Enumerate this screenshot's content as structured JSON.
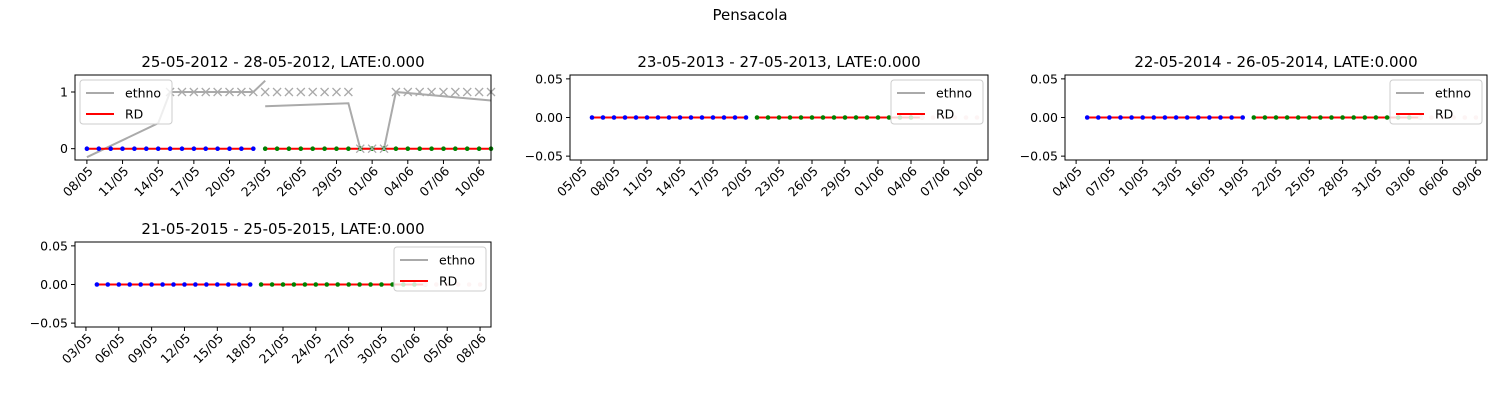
{
  "figure": {
    "suptitle": "Pensacola"
  },
  "colors": {
    "ethno": "#aaaaaa",
    "rd": "#ff0000",
    "pre_markers": "#0000ff",
    "post_markers": "#008000",
    "cross_markers": "#aaaaaa",
    "faded_markers": "#f2c8c8"
  },
  "chart_data": [
    {
      "type": "line",
      "title": "25-05-2012 - 28-05-2012, LATE:0.000",
      "xlabel": "",
      "ylabel": "",
      "x_range": [
        "07/05",
        "11/06"
      ],
      "ylim": [
        -0.2,
        1.3
      ],
      "yticks": [
        "0",
        "1"
      ],
      "xticks": [
        "08/05",
        "11/05",
        "14/05",
        "17/05",
        "20/05",
        "23/05",
        "26/05",
        "29/05",
        "01/06",
        "04/06",
        "07/06",
        "10/06"
      ],
      "legend": {
        "placement": "upper-left",
        "entries": [
          "ethno",
          "RD"
        ]
      },
      "grid": false,
      "series": [
        {
          "name": "ethno",
          "kind": "ethno-line",
          "segments": [
            [
              [
                "08/05",
                -0.15
              ],
              [
                "14/05",
                0.45
              ],
              [
                "15/05",
                1.0
              ],
              [
                "22/05",
                1.0
              ],
              [
                "23/05",
                1.2
              ]
            ],
            [
              [
                "23/05",
                0.75
              ],
              [
                "30/05",
                0.8
              ],
              [
                "31/05",
                0.0
              ],
              [
                "02/06",
                0.0
              ],
              [
                "03/06",
                1.0
              ],
              [
                "11/06",
                0.85
              ]
            ]
          ]
        },
        {
          "name": "RD",
          "kind": "rd-line",
          "segments": [
            [
              [
                "08/05",
                0
              ],
              [
                "22/05",
                0
              ]
            ],
            [
              [
                "23/05",
                0
              ],
              [
                "11/06",
                0
              ]
            ]
          ]
        },
        {
          "kind": "markers-pre",
          "x_start": "08/05",
          "x_end": "22/05",
          "y": 0
        },
        {
          "kind": "markers-post",
          "x_start": "23/05",
          "x_end": "11/06",
          "y": 0
        },
        {
          "kind": "cross-markers",
          "points": [
            [
              "15/05",
              1
            ],
            [
              "16/05",
              1
            ],
            [
              "17/05",
              1
            ],
            [
              "18/05",
              1
            ],
            [
              "19/05",
              1
            ],
            [
              "20/05",
              1
            ],
            [
              "21/05",
              1
            ],
            [
              "22/05",
              1
            ],
            [
              "23/05",
              1
            ],
            [
              "24/05",
              1
            ],
            [
              "25/05",
              1
            ],
            [
              "26/05",
              1
            ],
            [
              "27/05",
              1
            ],
            [
              "28/05",
              1
            ],
            [
              "29/05",
              1
            ],
            [
              "30/05",
              1
            ],
            [
              "31/05",
              0
            ],
            [
              "01/06",
              0
            ],
            [
              "02/06",
              0
            ],
            [
              "03/06",
              1
            ],
            [
              "04/06",
              1
            ],
            [
              "05/06",
              1
            ],
            [
              "06/06",
              1
            ],
            [
              "07/06",
              1
            ],
            [
              "08/06",
              1
            ],
            [
              "09/06",
              1
            ],
            [
              "10/06",
              1
            ],
            [
              "11/06",
              1
            ]
          ]
        }
      ]
    },
    {
      "type": "line",
      "title": "23-05-2013 - 27-05-2013, LATE:0.000",
      "xlabel": "",
      "ylabel": "",
      "x_range": [
        "04/05",
        "11/06"
      ],
      "ylim": [
        -0.055,
        0.055
      ],
      "yticks": [
        "0.05",
        "0.00",
        "−0.05"
      ],
      "xticks": [
        "05/05",
        "08/05",
        "11/05",
        "14/05",
        "17/05",
        "20/05",
        "23/05",
        "26/05",
        "29/05",
        "01/06",
        "04/06",
        "07/06",
        "10/06"
      ],
      "legend": {
        "placement": "upper-right",
        "entries": [
          "ethno",
          "RD"
        ]
      },
      "grid": false,
      "series": [
        {
          "name": "RD",
          "kind": "rd-line",
          "segments": [
            [
              [
                "06/05",
                0
              ],
              [
                "20/05",
                0
              ]
            ],
            [
              [
                "21/05",
                0
              ],
              [
                "05/06",
                0
              ]
            ]
          ]
        },
        {
          "kind": "markers-pre",
          "x_start": "06/05",
          "x_end": "20/05",
          "y": 0
        },
        {
          "kind": "markers-post",
          "x_start": "21/05",
          "x_end": "05/06",
          "y": 0
        },
        {
          "kind": "markers-faded",
          "x_start": "05/06",
          "x_end": "10/06",
          "y": 0
        }
      ]
    },
    {
      "type": "line",
      "title": "22-05-2014 - 26-05-2014, LATE:0.000",
      "xlabel": "",
      "ylabel": "",
      "x_range": [
        "03/05",
        "10/06"
      ],
      "ylim": [
        -0.055,
        0.055
      ],
      "yticks": [
        "0.05",
        "0.00",
        "−0.05"
      ],
      "xticks": [
        "04/05",
        "07/05",
        "10/05",
        "13/05",
        "16/05",
        "19/05",
        "22/05",
        "25/05",
        "28/05",
        "31/05",
        "03/06",
        "06/06",
        "09/06"
      ],
      "legend": {
        "placement": "upper-right",
        "entries": [
          "ethno",
          "RD"
        ]
      },
      "grid": false,
      "series": [
        {
          "name": "RD",
          "kind": "rd-line",
          "segments": [
            [
              [
                "05/05",
                0
              ],
              [
                "19/05",
                0
              ]
            ],
            [
              [
                "20/05",
                0
              ],
              [
                "04/06",
                0
              ]
            ]
          ]
        },
        {
          "kind": "markers-pre",
          "x_start": "05/05",
          "x_end": "19/05",
          "y": 0
        },
        {
          "kind": "markers-post",
          "x_start": "20/05",
          "x_end": "04/06",
          "y": 0
        },
        {
          "kind": "markers-faded",
          "x_start": "04/06",
          "x_end": "09/06",
          "y": 0
        }
      ]
    },
    {
      "type": "line",
      "title": "21-05-2015 - 25-05-2015, LATE:0.000",
      "xlabel": "",
      "ylabel": "",
      "x_range": [
        "02/05",
        "09/06"
      ],
      "ylim": [
        -0.055,
        0.055
      ],
      "yticks": [
        "0.05",
        "0.00",
        "−0.05"
      ],
      "xticks": [
        "03/05",
        "06/05",
        "09/05",
        "12/05",
        "15/05",
        "18/05",
        "21/05",
        "24/05",
        "27/05",
        "30/05",
        "02/06",
        "05/06",
        "08/06"
      ],
      "legend": {
        "placement": "upper-right",
        "entries": [
          "ethno",
          "RD"
        ]
      },
      "grid": false,
      "series": [
        {
          "name": "RD",
          "kind": "rd-line",
          "segments": [
            [
              [
                "04/05",
                0
              ],
              [
                "18/05",
                0
              ]
            ],
            [
              [
                "19/05",
                0
              ],
              [
                "03/06",
                0
              ]
            ]
          ]
        },
        {
          "kind": "markers-pre",
          "x_start": "04/05",
          "x_end": "18/05",
          "y": 0
        },
        {
          "kind": "markers-post",
          "x_start": "19/05",
          "x_end": "03/06",
          "y": 0
        },
        {
          "kind": "markers-faded",
          "x_start": "03/06",
          "x_end": "08/06",
          "y": 0
        }
      ]
    }
  ]
}
